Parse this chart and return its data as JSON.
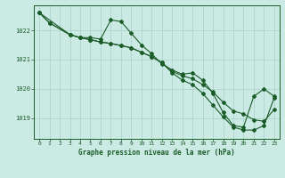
{
  "bg_color": "#cceae4",
  "line_color": "#1a5c28",
  "grid_color": "#b0d8d0",
  "title": "Graphe pression niveau de la mer (hPa)",
  "ylabel_ticks": [
    1019,
    1020,
    1021,
    1022
  ],
  "xlim": [
    -0.5,
    23.5
  ],
  "ylim": [
    1018.3,
    1022.85
  ],
  "series": {
    "line1_wavy": {
      "x": [
        0,
        1,
        3,
        4,
        5,
        6,
        7,
        8,
        9,
        10,
        11,
        12,
        13,
        14,
        15,
        16,
        17,
        18,
        19,
        20,
        21,
        22,
        23
      ],
      "y": [
        1022.6,
        1022.25,
        1021.85,
        1021.75,
        1021.75,
        1021.7,
        1022.35,
        1022.3,
        1021.9,
        1021.5,
        1021.2,
        1020.85,
        1020.65,
        1020.5,
        1020.55,
        1020.3,
        1019.85,
        1019.2,
        1018.75,
        1018.7,
        1019.75,
        1020.0,
        1019.75
      ]
    },
    "line2_mid": {
      "x": [
        0,
        1,
        3,
        4,
        5,
        6,
        7,
        8,
        9,
        10,
        11,
        12,
        13,
        14,
        15,
        16,
        17,
        18,
        19,
        20,
        21,
        22,
        23
      ],
      "y": [
        1022.6,
        1022.25,
        1021.85,
        1021.75,
        1021.68,
        1021.6,
        1021.55,
        1021.48,
        1021.4,
        1021.25,
        1021.1,
        1020.9,
        1020.6,
        1020.45,
        1020.35,
        1020.15,
        1019.9,
        1019.55,
        1019.25,
        1019.15,
        1018.95,
        1018.9,
        1019.3
      ]
    },
    "line3_steep": {
      "x": [
        0,
        3,
        4,
        5,
        6,
        7,
        8,
        9,
        10,
        11,
        12,
        13,
        14,
        15,
        16,
        17,
        18,
        19,
        20,
        21,
        22,
        23
      ],
      "y": [
        1022.6,
        1021.85,
        1021.75,
        1021.68,
        1021.6,
        1021.55,
        1021.48,
        1021.4,
        1021.25,
        1021.1,
        1020.9,
        1020.55,
        1020.3,
        1020.15,
        1019.85,
        1019.45,
        1019.05,
        1018.7,
        1018.6,
        1018.6,
        1018.75,
        1019.7
      ]
    }
  }
}
